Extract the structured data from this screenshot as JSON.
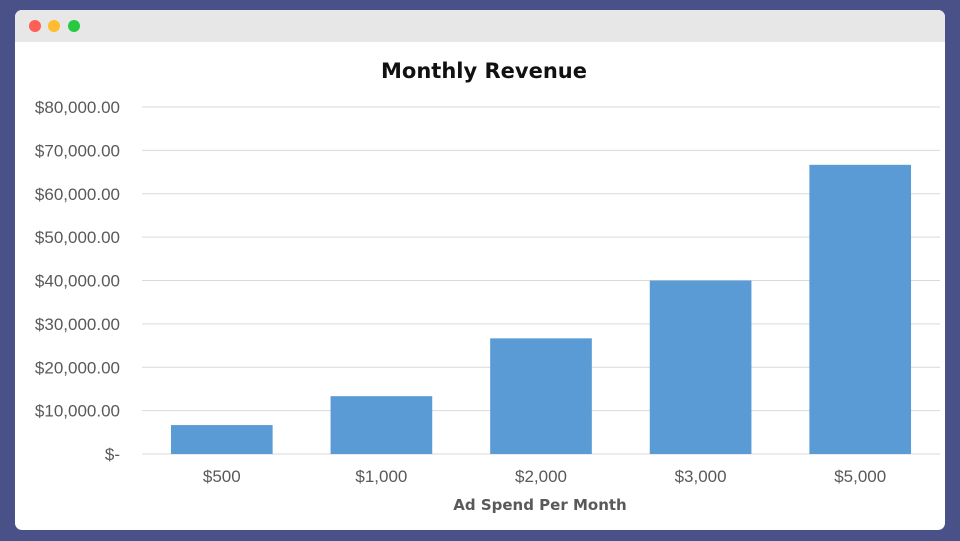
{
  "window": {
    "controls": [
      "close",
      "minimize",
      "maximize"
    ]
  },
  "chart_data": {
    "type": "bar",
    "title": "Monthly Revenue",
    "xlabel": "Ad Spend Per Month",
    "ylabel": "",
    "categories": [
      "$500",
      "$1,000",
      "$2,000",
      "$3,000",
      "$5,000"
    ],
    "values": [
      6667,
      13333,
      26667,
      40000,
      66667
    ],
    "ylim": [
      0,
      80000
    ],
    "yticks": [
      0,
      10000,
      20000,
      30000,
      40000,
      50000,
      60000,
      70000,
      80000
    ],
    "ytick_labels": [
      "$-",
      "$10,000.00",
      "$20,000.00",
      "$30,000.00",
      "$40,000.00",
      "$50,000.00",
      "$60,000.00",
      "$70,000.00",
      "$80,000.00"
    ],
    "grid": true,
    "legend": "none",
    "bar_color": "#5b9bd5"
  }
}
